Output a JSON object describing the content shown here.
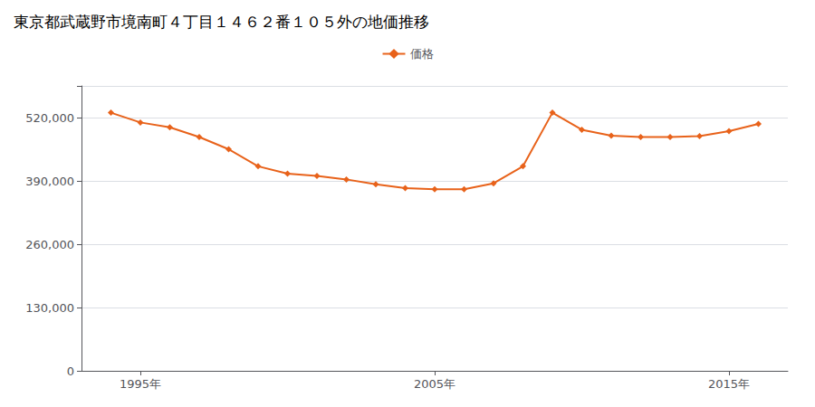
{
  "chart_data": {
    "type": "line",
    "title": "東京都武蔵野市境南町４丁目１４６２番１０５外の地価推移",
    "legend": "top",
    "x": [
      1994,
      1995,
      1996,
      1997,
      1998,
      1999,
      2000,
      2001,
      2002,
      2003,
      2004,
      2005,
      2006,
      2007,
      2008,
      2009,
      2010,
      2011,
      2012,
      2013,
      2014,
      2015,
      2016
    ],
    "series": [
      {
        "name": "価格",
        "color": "#E8621A",
        "marker": "diamond",
        "values": [
          530000,
          510000,
          500000,
          480000,
          455000,
          420000,
          405000,
          400000,
          393000,
          383000,
          375000,
          373000,
          373000,
          385000,
          420000,
          530000,
          495000,
          483000,
          480000,
          480000,
          482000,
          492000,
          507000
        ]
      }
    ],
    "xlim": [
      1993,
      2017
    ],
    "xticks": [
      {
        "value": 1995,
        "label": "1995年"
      },
      {
        "value": 2005,
        "label": "2005年"
      },
      {
        "value": 2015,
        "label": "2015年"
      }
    ],
    "ylim": [
      0,
      585000
    ],
    "yticks": [
      0,
      {
        "value": 130000,
        "label": "130,000"
      },
      {
        "value": 260000,
        "label": "260,000"
      },
      {
        "value": 390000,
        "label": "390,000"
      },
      {
        "value": 520000,
        "label": "520,000"
      }
    ],
    "grid": true
  }
}
